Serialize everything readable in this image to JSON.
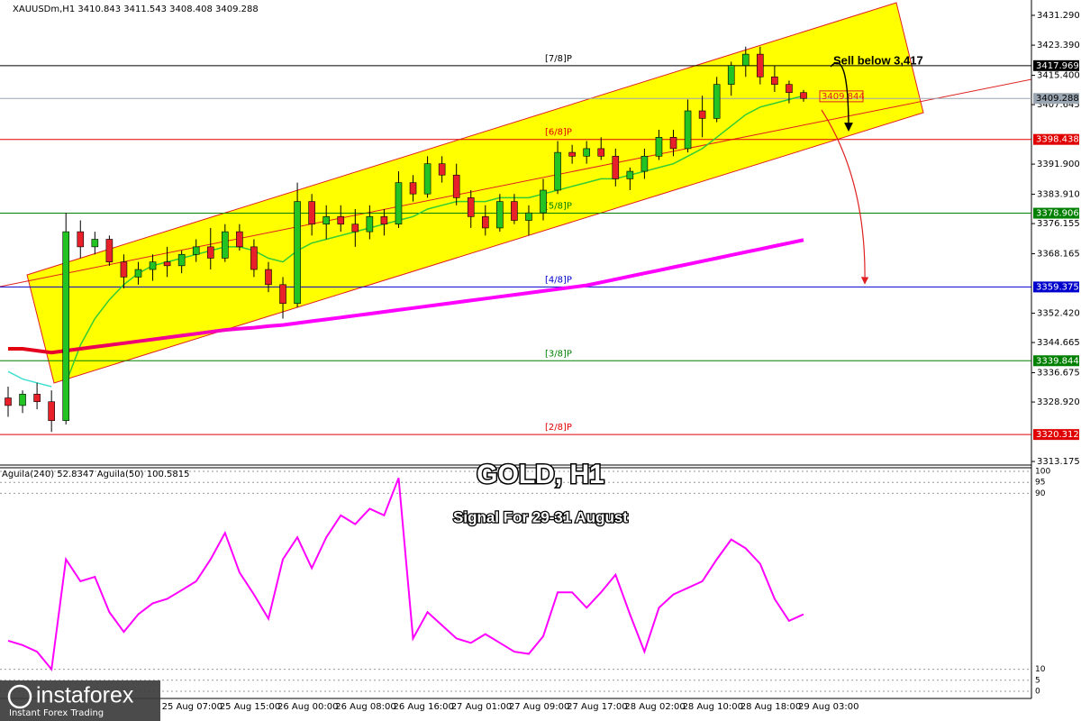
{
  "chart_data": {
    "type": "candlestick",
    "title": "GOLD, H1",
    "subtitle": "Signal For 29-31 August",
    "symbol_info": "XAUUSDm,H1  3410.843 3411.543 3408.408 3409.288",
    "annotation": "Sell below 3,417",
    "price_tag": 3409.844,
    "up_color": "#22c322",
    "down_color": "#e8202a",
    "categories": [
      null,
      null,
      null,
      null,
      null,
      null,
      null,
      null,
      null,
      null,
      null,
      "25 Aug 07:00",
      null,
      null,
      null,
      "25 Aug 15:00",
      null,
      null,
      null,
      "26 Aug 00:00",
      null,
      null,
      null,
      "26 Aug 08:00",
      null,
      null,
      null,
      "26 Aug 16:00",
      null,
      null,
      null,
      "27 Aug 01:00",
      null,
      null,
      null,
      "27 Aug 09:00",
      null,
      null,
      null,
      "27 Aug 17:00",
      null,
      null,
      null,
      "28 Aug 02:00",
      null,
      null,
      null,
      "28 Aug 10:00",
      null,
      null,
      null,
      "28 Aug 18:00",
      null,
      null,
      null,
      "29 Aug 03:00"
    ],
    "open": [
      3330,
      3328,
      3331,
      3329,
      3324,
      3374,
      3370,
      3372,
      3366,
      3362,
      3364,
      3366,
      3365,
      3368,
      3370,
      3367,
      3374,
      3370,
      3364,
      3360,
      3355,
      3382,
      3376,
      3378,
      3376,
      3374,
      3378,
      3376,
      3387,
      3384,
      3392,
      3389,
      3383,
      3378,
      3375,
      3382,
      3377,
      3379,
      3385,
      3395,
      3394,
      3396,
      3394,
      3388,
      3390,
      3394,
      3399,
      3396,
      3406,
      3404,
      3413,
      3418,
      3421,
      3415,
      3413,
      3410.843
    ],
    "high": [
      3333,
      3332,
      3334,
      3332,
      3379,
      3377,
      3374,
      3373,
      3368,
      3366,
      3368,
      3370,
      3369,
      3372,
      3375,
      3376,
      3376,
      3372,
      3366,
      3362,
      3387,
      3384,
      3381,
      3381,
      3380,
      3381,
      3380,
      3390,
      3389,
      3394,
      3394,
      3392,
      3385,
      3381,
      3384,
      3384,
      3381,
      3388,
      3398,
      3397,
      3398,
      3399,
      3396,
      3391,
      3396,
      3401,
      3401,
      3409,
      3410,
      3415,
      3419,
      3423,
      3423,
      3418,
      3414,
      3411.543
    ],
    "low": [
      3325,
      3326,
      3327,
      3321,
      3323,
      3367,
      3368,
      3365,
      3359,
      3360,
      3361,
      3362,
      3363,
      3366,
      3364,
      3366,
      3369,
      3362,
      3358,
      3351,
      3354,
      3373,
      3372,
      3374,
      3370,
      3372,
      3373,
      3375,
      3382,
      3383,
      3387,
      3381,
      3375,
      3373,
      3374,
      3376,
      3373,
      3377,
      3384,
      3392,
      3392,
      3393,
      3386,
      3385,
      3388,
      3393,
      3394,
      3395,
      3399,
      3403,
      3410,
      3415,
      3413,
      3411,
      3408,
      3408.408
    ],
    "close": [
      3328,
      3331,
      3329,
      3324,
      3374,
      3370,
      3372,
      3366,
      3362,
      3364,
      3366,
      3365,
      3368,
      3370,
      3367,
      3374,
      3370,
      3364,
      3360,
      3355,
      3382,
      3376,
      3378,
      3376,
      3374,
      3378,
      3376,
      3387,
      3384,
      3392,
      3389,
      3383,
      3378,
      3375,
      3382,
      3377,
      3379,
      3385,
      3395,
      3394,
      3396,
      3394,
      3388,
      3390,
      3394,
      3399,
      3396,
      3406,
      3404,
      3413,
      3418,
      3421,
      3415,
      3413,
      3410.843,
      3409.288
    ],
    "overlays": [
      {
        "color": "#40e0d0",
        "thick": false,
        "values": [
          3337,
          3335,
          3334,
          3333,
          null,
          null,
          null,
          null,
          null,
          null,
          null,
          null,
          null,
          null,
          null,
          null,
          null,
          null,
          null,
          null,
          null,
          null,
          null,
          null,
          null,
          null,
          null,
          null,
          null,
          null,
          null,
          null,
          null,
          null,
          null,
          null,
          null,
          null,
          null,
          null,
          null,
          null,
          null,
          null,
          null,
          null,
          null,
          null,
          null,
          null,
          null,
          null,
          null,
          null,
          null,
          null
        ]
      },
      {
        "color": "#33cc33",
        "thick": false,
        "values": [
          null,
          null,
          null,
          null,
          3334,
          3344,
          3351,
          3356,
          3360,
          3363,
          3365,
          3366,
          3367,
          3368,
          3369,
          3370,
          3370,
          3369,
          3367,
          3366,
          3369,
          3371,
          3372,
          3373,
          3374,
          3375,
          3376,
          3377,
          3378,
          3380,
          3381,
          3382,
          3382,
          3382,
          3383,
          3383,
          3383,
          3384,
          3385,
          3386,
          3387,
          3388,
          3388,
          3389,
          3390,
          3391,
          3392,
          3394,
          3396,
          3399,
          3402,
          3405,
          3407,
          3408,
          3409,
          3410
        ]
      },
      {
        "color": "#ff00ff",
        "start_color": "#e00000",
        "thick": true,
        "values": [
          3343,
          3343,
          3342.5,
          3342,
          3342.5,
          3343,
          3343.5,
          3344,
          3344.5,
          3345,
          3345.5,
          3346,
          3346.5,
          3347,
          3347.5,
          3348,
          3348.3,
          3348.6,
          3349,
          3349.3,
          3349.8,
          3350.3,
          3350.8,
          3351.3,
          3351.8,
          3352.3,
          3352.8,
          3353.3,
          3353.8,
          3354.3,
          3354.8,
          3355.3,
          3355.8,
          3356.3,
          3356.8,
          3357.3,
          3357.8,
          3358.3,
          3358.8,
          3359.3,
          3359.8,
          3360.6,
          3361.4,
          3362.2,
          3363,
          3363.8,
          3364.6,
          3365.4,
          3366.2,
          3367,
          3367.8,
          3368.6,
          3369.4,
          3370.2,
          3371,
          3371.8
        ]
      }
    ],
    "ylim": [
      3312.47,
      3434.63
    ],
    "yticks": [
      {
        "value": 3431.29,
        "label": "3431.290"
      },
      {
        "value": 3423.39,
        "label": "3423.390"
      },
      {
        "value": 3415.4,
        "label": "3415.400"
      },
      {
        "value": 3407.645,
        "label": "3407.645"
      },
      {
        "value": 3391.9,
        "label": "3391.900"
      },
      {
        "value": 3383.91,
        "label": "3383.910"
      },
      {
        "value": 3376.155,
        "label": "3376.155"
      },
      {
        "value": 3368.165,
        "label": "3368.165"
      },
      {
        "value": 3352.42,
        "label": "3352.420"
      },
      {
        "value": 3344.665,
        "label": "3344.665"
      },
      {
        "value": 3336.675,
        "label": "3336.675"
      },
      {
        "value": 3328.92,
        "label": "3328.920"
      },
      {
        "value": 3313.175,
        "label": "3313.175"
      }
    ],
    "levels": [
      {
        "value": 3417.969,
        "color": "#000000",
        "text_color": "#ffffff",
        "label": "[7/8]P"
      },
      {
        "value": 3409.288,
        "color": "#9aa6b2",
        "text_color": "#000000"
      },
      {
        "value": 3398.438,
        "color": "#e00000",
        "text_color": "#ffffff",
        "label": "[6/8]P"
      },
      {
        "value": 3378.906,
        "color": "#008000",
        "text_color": "#ffffff",
        "label": "[5/8]P"
      },
      {
        "value": 3359.375,
        "color": "#0000cc",
        "text_color": "#ffffff",
        "label": "[4/8]P"
      },
      {
        "value": 3339.844,
        "color": "#008000",
        "text_color": "#ffffff",
        "label": "[3/8]P"
      },
      {
        "value": 3320.312,
        "color": "#e00000",
        "text_color": "#ffffff",
        "label": "[2/8]P"
      }
    ],
    "indicator": {
      "label": "Aguila(240) 52.8347  Aguila(50) 100.5815",
      "color": "#ff00ff",
      "values": [
        23,
        21,
        18,
        10,
        60,
        50,
        52,
        36,
        27,
        35,
        40,
        42,
        46,
        50,
        60,
        72,
        54,
        44,
        33,
        60,
        70,
        56,
        70,
        80,
        76,
        83,
        80,
        97,
        24,
        36,
        30,
        24,
        22,
        26,
        22,
        18,
        17,
        25,
        45,
        45,
        38,
        45,
        53,
        35,
        18,
        38,
        44,
        47,
        50,
        60,
        69,
        65,
        58,
        42,
        32,
        35
      ],
      "ylim": [
        -3.28,
        102.46
      ],
      "yticks": [
        100,
        95,
        90,
        10,
        5,
        0
      ]
    }
  },
  "logo": {
    "brand": "instaforex",
    "tagline": "Instant Forex Trading"
  }
}
